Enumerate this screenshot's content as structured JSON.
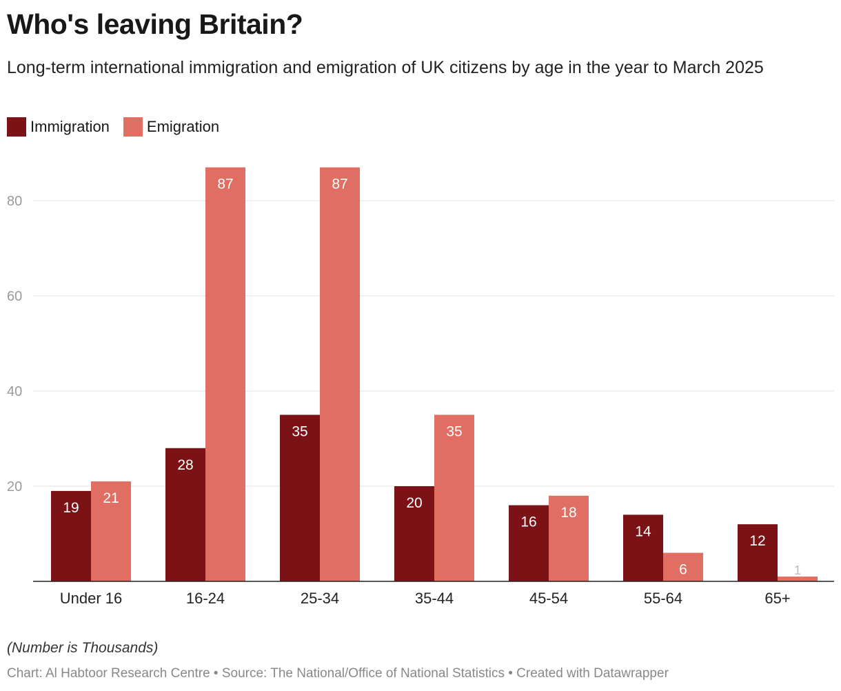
{
  "header": {
    "title": "Who's leaving Britain?",
    "subtitle": "Long-term international immigration and emigration of UK citizens by age in the year to March 2025"
  },
  "legend": {
    "items": [
      {
        "label": "Immigration",
        "color": "#7b1215"
      },
      {
        "label": "Emigration",
        "color": "#e06e62"
      }
    ]
  },
  "chart_data": {
    "type": "bar",
    "title": "Who's leaving Britain?",
    "categories": [
      "Under 16",
      "16-24",
      "25-34",
      "35-44",
      "45-54",
      "55-64",
      "65+"
    ],
    "series": [
      {
        "name": "Immigration",
        "color": "#7b1215",
        "values": [
          19,
          28,
          35,
          20,
          16,
          14,
          12
        ]
      },
      {
        "name": "Emigration",
        "color": "#e06e62",
        "values": [
          21,
          87,
          87,
          35,
          18,
          6,
          1
        ]
      }
    ],
    "yticks": [
      20,
      40,
      60,
      80
    ],
    "ylim": [
      0,
      87
    ],
    "grid": true,
    "xlabel": "",
    "ylabel": ""
  },
  "footer": {
    "note": "(Number is Thousands)",
    "credit": "Chart: Al Habtoor Research Centre • Source: The National/Office of National Statistics • Created with Datawrapper"
  }
}
